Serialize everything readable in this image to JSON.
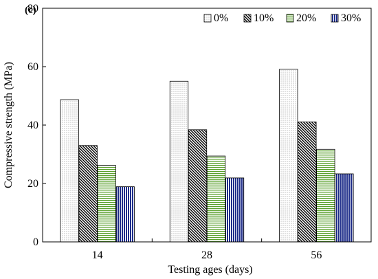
{
  "chart_data": {
    "type": "bar",
    "panel_label": "(c)",
    "title": "",
    "xlabel": "Testing ages (days)",
    "ylabel": "Compressive strength (MPa)",
    "categories": [
      "14",
      "28",
      "56"
    ],
    "ylim": [
      0,
      80
    ],
    "yticks": [
      0,
      20,
      40,
      60,
      80
    ],
    "grid": false,
    "legend_position": "top-right",
    "series": [
      {
        "name": "0%",
        "values": [
          48.7,
          55.0,
          59.1
        ],
        "pattern": "dots",
        "color": "#ffffff"
      },
      {
        "name": "10%",
        "values": [
          33.0,
          38.4,
          41.1
        ],
        "pattern": "diagonal",
        "color": "#ffffff"
      },
      {
        "name": "20%",
        "values": [
          26.2,
          29.4,
          31.7
        ],
        "pattern": "horizontal",
        "color": "#5aa02c"
      },
      {
        "name": "30%",
        "values": [
          18.9,
          21.9,
          23.3
        ],
        "pattern": "vertical",
        "color": "#1f2e8a"
      }
    ]
  }
}
